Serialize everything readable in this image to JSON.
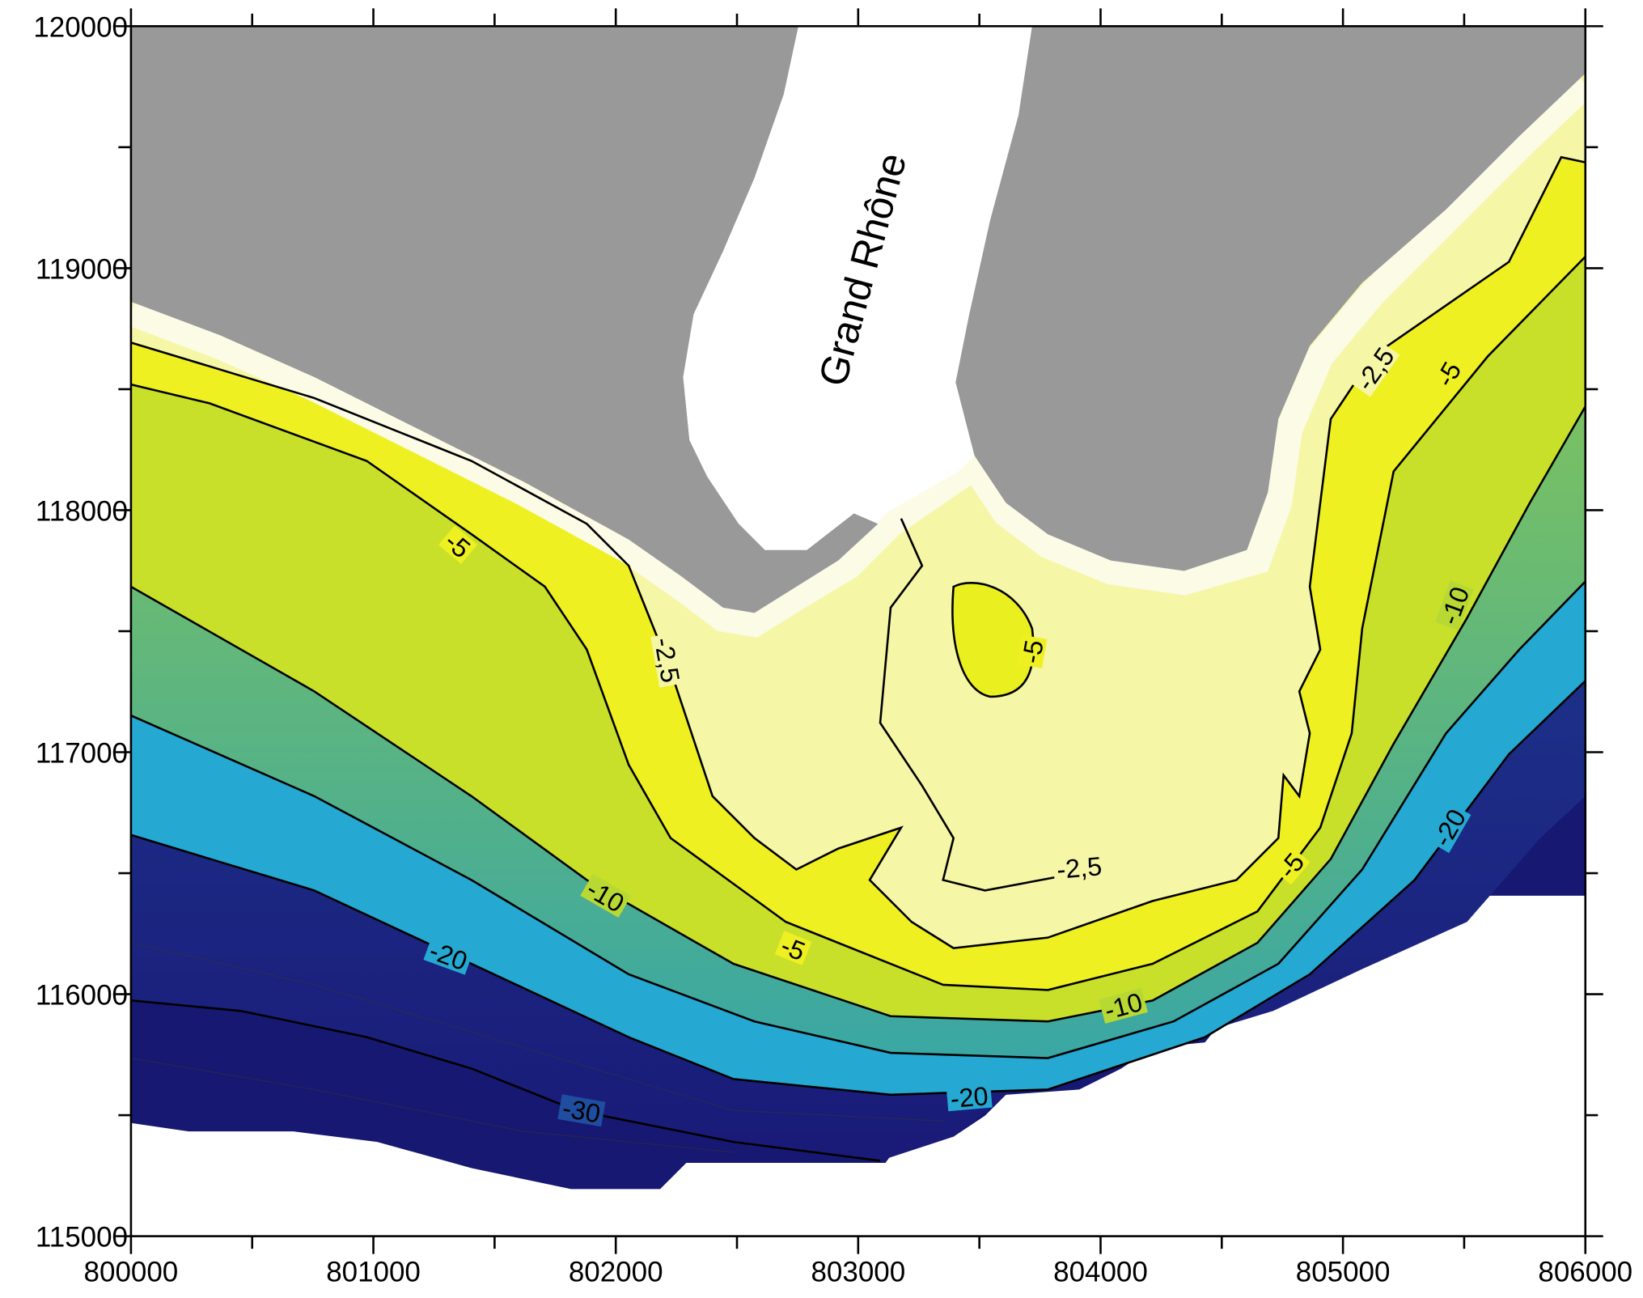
{
  "chart_data": {
    "type": "contour",
    "annotation": "Grand Rhône",
    "xlim": [
      800000,
      806000
    ],
    "ylim": [
      115000,
      120000
    ],
    "xticks": [
      800000,
      801000,
      802000,
      803000,
      804000,
      805000,
      806000
    ],
    "yticks": [
      115000,
      116000,
      117000,
      118000,
      119000,
      120000
    ],
    "contour_labels": [
      -5,
      {
        "value": -2.5,
        "label": "-2,5"
      },
      -5,
      {
        "value": -2.5,
        "label": "-2,5"
      },
      -10,
      -20,
      -5,
      -10,
      -20,
      -30,
      -5,
      {
        "value": -2.5,
        "label": "-2,5"
      },
      -5,
      -10,
      -20
    ]
  }
}
